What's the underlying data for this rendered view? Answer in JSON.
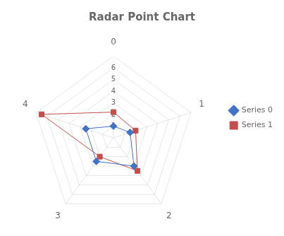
{
  "chart_data": {
    "type": "radar",
    "title": "Radar Point Chart",
    "categories": [
      "0",
      "1",
      "2",
      "3",
      "4"
    ],
    "series": [
      {
        "name": "Series 0",
        "color": "#4472c4",
        "marker": "diamond",
        "values": [
          1.0,
          1.5,
          3.0,
          2.5,
          2.5
        ]
      },
      {
        "name": "Series 1",
        "color": "#c0504d",
        "marker": "square",
        "values": [
          2.2,
          2.0,
          3.5,
          2.0,
          6.5
        ]
      }
    ],
    "ylim": [
      0,
      7
    ],
    "yticks": [
      1,
      2,
      3,
      4,
      5,
      6
    ],
    "grid": true,
    "legend": "right"
  }
}
